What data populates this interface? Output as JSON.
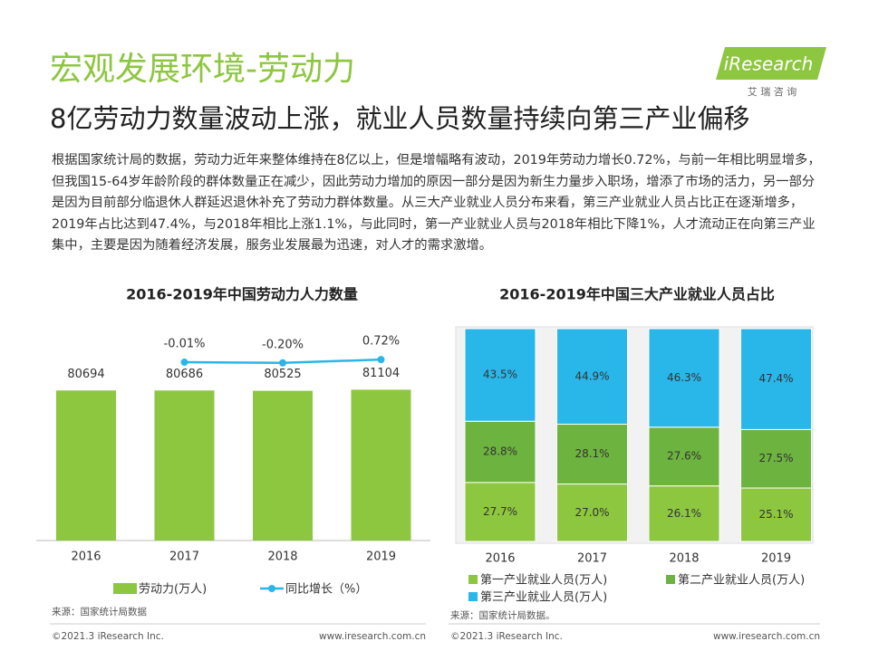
{
  "header": {
    "title": "宏观发展环境-劳动力",
    "subtitle": "8亿劳动力数量波动上涨，就业人员数量持续向第三产业偏移",
    "logo": "iResearch",
    "logo_sub": "艾 瑞 咨 询"
  },
  "body": "根据国家统计局的数据，劳动力近年来整体维持在8亿以上，但是增幅略有波动，2019年劳动力增长0.72%，与前一年相比明显增多，但我国15-64岁年龄阶段的群体数量正在减少，因此劳动力增加的原因一部分是因为新生力量步入职场，增添了市场的活力，另一部分是因为目前部分临退休人群延迟退休补充了劳动力群体数量。从三大产业就业人员分布来看，第三产业就业人员占比正在逐渐增多，2019年占比达到47.4%，与2018年相比上涨1.1%，与此同时，第一产业就业人员与2018年相比下降1%，人才流动正在向第三产业集中，主要是因为随着经济发展，服务业发展最为迅速，对人才的需求激增。",
  "chart_data": [
    {
      "type": "combo",
      "title": "2016-2019年中国劳动力人力数量",
      "categories": [
        "2016",
        "2017",
        "2018",
        "2019"
      ],
      "series": [
        {
          "name": "劳动力(万人)",
          "type": "bar",
          "color": "#8dc63f",
          "values": [
            80694,
            80686,
            80525,
            81104
          ]
        },
        {
          "name": "同比增长（%）",
          "type": "line",
          "axis": "y2",
          "color": "#29b6e8",
          "values": [
            null,
            -0.01,
            -0.2,
            0.72
          ],
          "value_labels": [
            null,
            "-0.01%",
            "-0.20%",
            "0.72%"
          ]
        }
      ],
      "ylim": [
        0,
        130000
      ],
      "y2lim": [
        -10,
        10
      ],
      "source": "来源：国家统计局数据"
    },
    {
      "type": "stacked_bar",
      "title": "2016-2019年中国三大产业就业人员占比",
      "categories": [
        "2016",
        "2017",
        "2018",
        "2019"
      ],
      "series": [
        {
          "name": "第一产业就业人员(万人)",
          "color": "#8dc63f",
          "values": [
            27.7,
            27.0,
            26.1,
            25.1
          ],
          "value_labels": [
            "27.7%",
            "27.0%",
            "26.1%",
            "25.1%"
          ]
        },
        {
          "name": "第二产业就业人员(万人)",
          "color": "#6db33f",
          "values": [
            28.8,
            28.1,
            27.6,
            27.5
          ],
          "value_labels": [
            "28.8%",
            "28.1%",
            "27.6%",
            "27.5%"
          ]
        },
        {
          "name": "第三产业就业人员(万人)",
          "color": "#29b6e8",
          "values": [
            43.5,
            44.9,
            46.3,
            47.4
          ],
          "value_labels": [
            "43.5%",
            "44.9%",
            "46.3%",
            "47.4%"
          ]
        }
      ],
      "ylim": [
        0,
        100
      ],
      "source": "来源：国家统计局数据。"
    }
  ],
  "footer": {
    "left1": "©2021.3 iResearch Inc.",
    "right1": "www.iresearch.com.cn",
    "left2": "©2021.3 iResearch Inc.",
    "right2": "www.iresearch.com.cn"
  }
}
